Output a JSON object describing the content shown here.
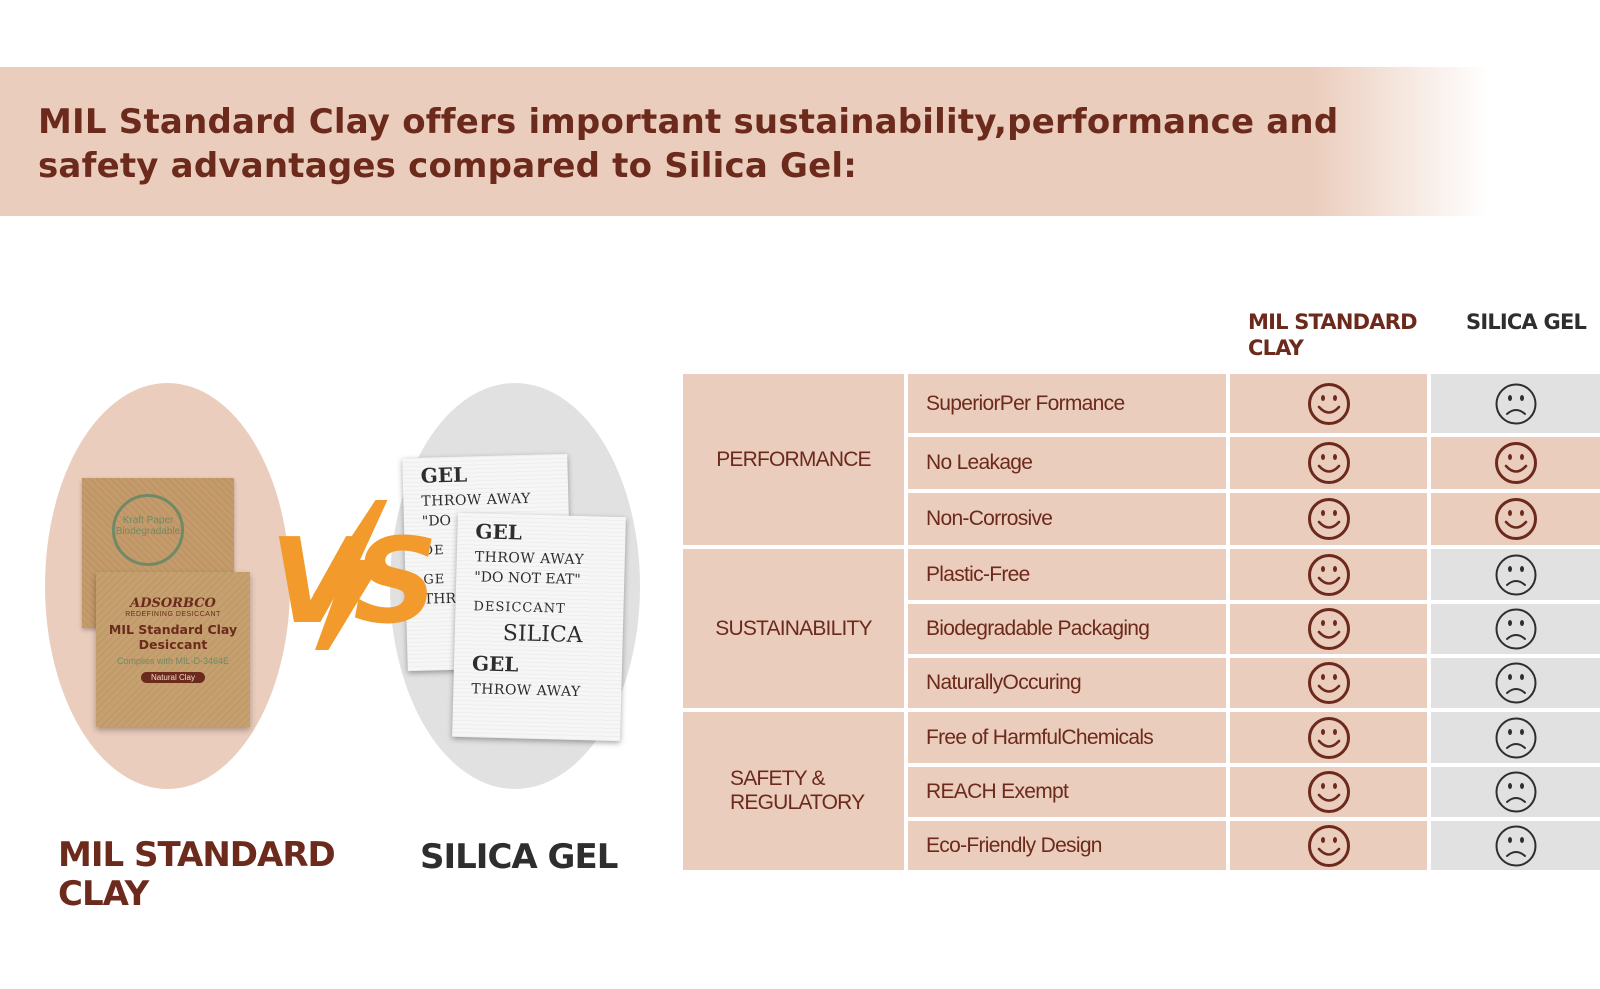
{
  "banner": {
    "title": "MIL Standard Clay offers important sustainability,performance and safety advantages compared to Silica Gel:"
  },
  "products": {
    "clay": {
      "caption": "MIL STANDARD CLAY",
      "packet_back_text": "Kraft Paper Biodegradable",
      "packet_brand": "ADSORBCO",
      "packet_tagline": "REDEFINING DESICCANT",
      "packet_name": "MIL Standard Clay Desiccant",
      "packet_compliance": "Complies with MIL-D-3464E",
      "packet_badge": "Natural Clay"
    },
    "vs_label": "VS",
    "silica": {
      "caption": "SILICA GEL",
      "packet_back": [
        "GEL",
        "THROW AWAY",
        "\"DO",
        "DE",
        "GE",
        "THR"
      ],
      "packet_front": [
        "GEL",
        "THROW AWAY",
        "\"DO NOT EAT\"",
        "DESICCANT",
        "SILICA",
        "GEL",
        "THROW AWAY"
      ]
    }
  },
  "comparison": {
    "column_headers": {
      "clay": "MIL STANDARD CLAY",
      "silica": "SILICA GEL"
    },
    "colors": {
      "clay_bg": "#ebcdbd",
      "positive_bg": "#ebcdbd",
      "negative_bg": "#e1e1e1",
      "clay_text": "#6b2a1c",
      "silica_text": "#2e2e2e"
    },
    "categories": [
      {
        "label": "PERFORMANCE"
      },
      {
        "label": "SUSTAINABILITY"
      },
      {
        "label": "SAFETY & REGULATORY"
      }
    ],
    "rows": [
      {
        "feature": "SuperiorPer Formance",
        "clay": "happy",
        "silica": "sad"
      },
      {
        "feature": "No Leakage",
        "clay": "happy",
        "silica": "happy"
      },
      {
        "feature": "Non-Corrosive",
        "clay": "happy",
        "silica": "happy"
      },
      {
        "feature": "Plastic-Free",
        "clay": "happy",
        "silica": "sad"
      },
      {
        "feature": "Biodegradable Packaging",
        "clay": "happy",
        "silica": "sad"
      },
      {
        "feature": "NaturallyOccuring",
        "clay": "happy",
        "silica": "sad"
      },
      {
        "feature": "Free of HarmfulChemicals",
        "clay": "happy",
        "silica": "sad"
      },
      {
        "feature": "REACH Exempt",
        "clay": "happy",
        "silica": "sad"
      },
      {
        "feature": "Eco-Friendly Design",
        "clay": "happy",
        "silica": "sad"
      }
    ]
  }
}
